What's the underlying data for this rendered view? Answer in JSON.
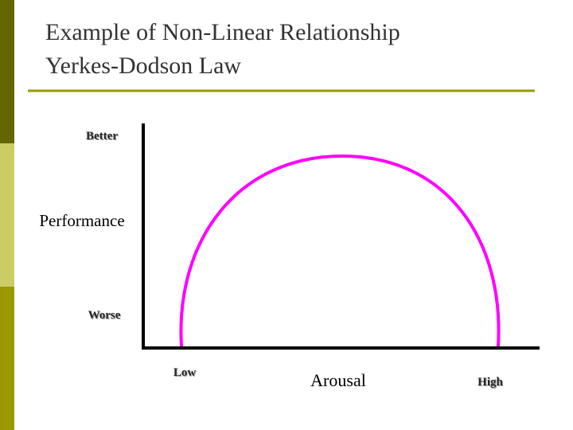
{
  "header": {
    "title_line1": "Example of Non-Linear Relationship",
    "title_line2": "Yerkes-Dodson Law"
  },
  "diagram": {
    "y_top_label": "Better",
    "y_axis_label": "Performance",
    "y_bottom_label": "Worse",
    "x_left_label": "Low",
    "x_axis_label": "Arousal",
    "x_right_label": "High"
  }
}
